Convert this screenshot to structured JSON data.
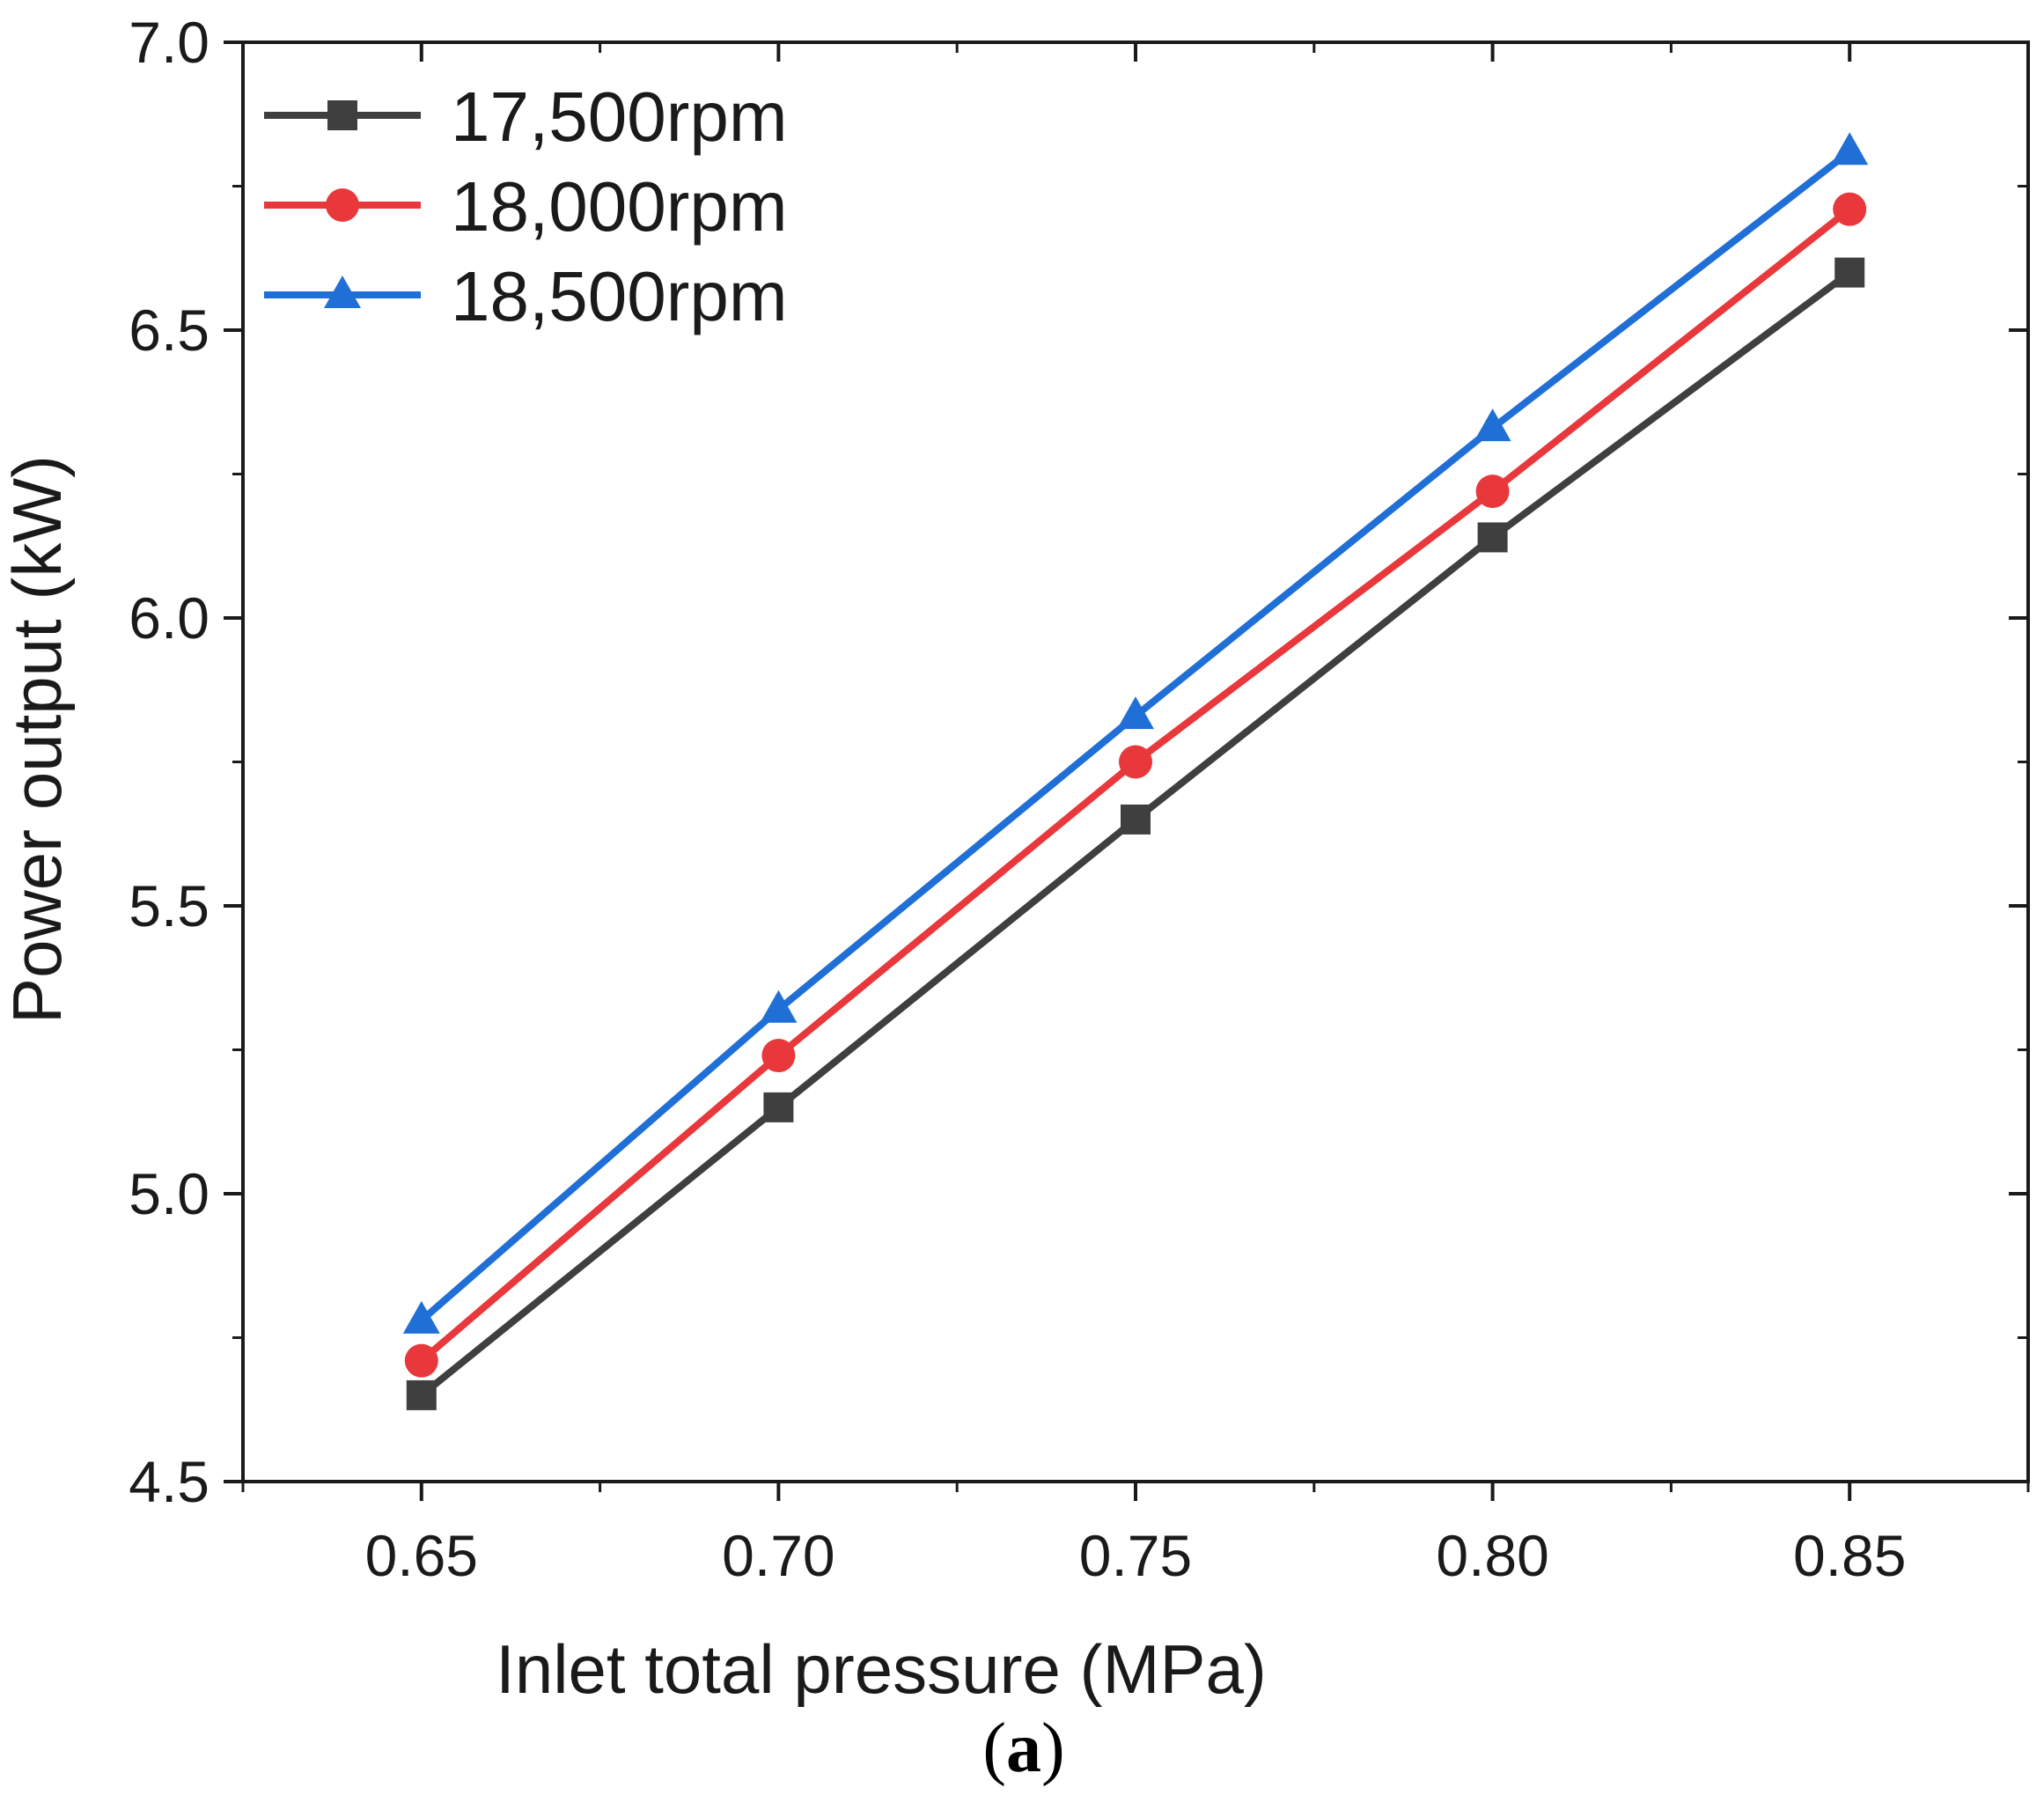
{
  "chart_data": {
    "type": "line",
    "title": "",
    "xlabel": "Inlet total pressure (MPa)",
    "ylabel": "Power output (kW)",
    "x": [
      0.65,
      0.7,
      0.75,
      0.8,
      0.85
    ],
    "x_tick_labels": [
      "0.65",
      "0.70",
      "0.75",
      "0.80",
      "0.85"
    ],
    "y_tick_labels": [
      "4.5",
      "5.0",
      "5.5",
      "6.0",
      "6.5",
      "7.0"
    ],
    "xlim": [
      0.625,
      0.875
    ],
    "ylim": [
      4.5,
      7.0
    ],
    "grid": false,
    "legend_position": "top-left",
    "series": [
      {
        "name": "17,500rpm",
        "color": "#3f3f3f",
        "marker": "square",
        "values": [
          4.65,
          5.15,
          5.65,
          6.14,
          6.6
        ]
      },
      {
        "name": "18,000rpm",
        "color": "#e8383b",
        "marker": "circle",
        "values": [
          4.71,
          5.24,
          5.75,
          6.22,
          6.71
        ]
      },
      {
        "name": "18,500rpm",
        "color": "#1f6fd6",
        "marker": "triangle",
        "values": [
          4.78,
          5.32,
          5.83,
          6.33,
          6.81
        ]
      }
    ]
  },
  "caption": {
    "open": "(",
    "label": "a",
    "close": ")"
  }
}
